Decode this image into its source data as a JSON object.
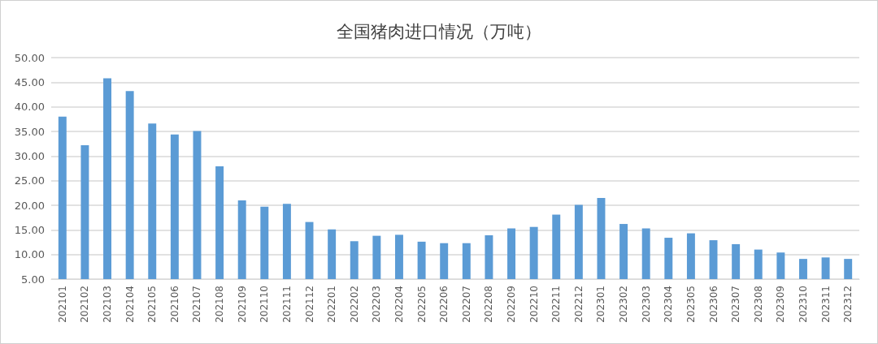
{
  "chart_data": {
    "type": "bar",
    "title": "全国猪肉进口情况（万吨）",
    "categories": [
      "202101",
      "202102",
      "202103",
      "202104",
      "202105",
      "202106",
      "202107",
      "202108",
      "202109",
      "202110",
      "202111",
      "202112",
      "202201",
      "202202",
      "202203",
      "202204",
      "202205",
      "202206",
      "202207",
      "202208",
      "202209",
      "202210",
      "202211",
      "202212",
      "202301",
      "202302",
      "202303",
      "202304",
      "202305",
      "202306",
      "202307",
      "202308",
      "202309",
      "202310",
      "202311",
      "202312"
    ],
    "values": [
      38.0,
      32.2,
      45.8,
      43.2,
      36.6,
      34.4,
      35.1,
      27.9,
      21.0,
      19.7,
      20.3,
      16.6,
      15.1,
      12.7,
      13.8,
      14.0,
      12.6,
      12.3,
      12.3,
      13.9,
      15.3,
      15.6,
      18.1,
      20.1,
      21.5,
      16.2,
      15.3,
      13.4,
      14.3,
      12.9,
      12.1,
      11.0,
      10.4,
      9.1,
      9.4,
      9.1
    ],
    "color": "#5b9bd5",
    "ylim": [
      5,
      50
    ],
    "yticks": [
      {
        "value": 5,
        "label": "5.00"
      },
      {
        "value": 10,
        "label": "10.00"
      },
      {
        "value": 15,
        "label": "15.00"
      },
      {
        "value": 20,
        "label": "20.00"
      },
      {
        "value": 25,
        "label": "25.00"
      },
      {
        "value": 30,
        "label": "30.00"
      },
      {
        "value": 35,
        "label": "35.00"
      },
      {
        "value": 40,
        "label": "40.00"
      },
      {
        "value": 45,
        "label": "45.00"
      },
      {
        "value": 50,
        "label": "50.00"
      }
    ],
    "grid": "y"
  }
}
